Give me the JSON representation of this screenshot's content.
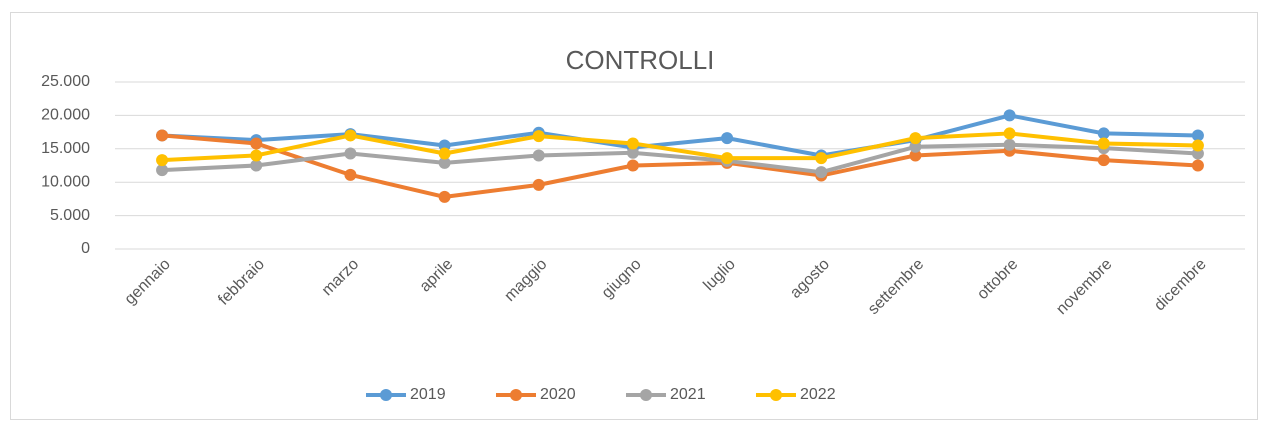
{
  "chart_data": {
    "type": "line",
    "title": "CONTROLLI",
    "categories": [
      "gennaio",
      "febbraio",
      "marzo",
      "aprile",
      "maggio",
      "giugno",
      "luglio",
      "agosto",
      "settembre",
      "ottobre",
      "novembre",
      "dicembre"
    ],
    "series": [
      {
        "name": "2019",
        "color": "#5b9bd5",
        "values": [
          17000,
          16300,
          17200,
          15500,
          17400,
          15200,
          16600,
          14000,
          16300,
          20000,
          17300,
          17000
        ]
      },
      {
        "name": "2020",
        "color": "#ed7d31",
        "values": [
          17000,
          15800,
          11100,
          7800,
          9600,
          12500,
          12900,
          11000,
          14000,
          14700,
          13300,
          12500
        ]
      },
      {
        "name": "2021",
        "color": "#a5a5a5",
        "values": [
          11800,
          12500,
          14300,
          12900,
          14000,
          14400,
          13200,
          11500,
          15300,
          15600,
          15100,
          14300
        ]
      },
      {
        "name": "2022",
        "color": "#ffc000",
        "values": [
          13300,
          14000,
          17000,
          14300,
          16900,
          15800,
          13600,
          13600,
          16600,
          17300,
          15800,
          15500
        ]
      }
    ],
    "ylim": [
      0,
      25000
    ],
    "yticks": [
      0,
      {
        "value": 5000,
        "label": "5.000"
      },
      {
        "value": 10000,
        "label": "10.000"
      },
      {
        "value": 15000,
        "label": "15.000"
      },
      {
        "value": 20000,
        "label": "20.000"
      },
      {
        "value": 25000,
        "label": "25.000"
      }
    ],
    "grid": true,
    "legend": "bottom"
  }
}
